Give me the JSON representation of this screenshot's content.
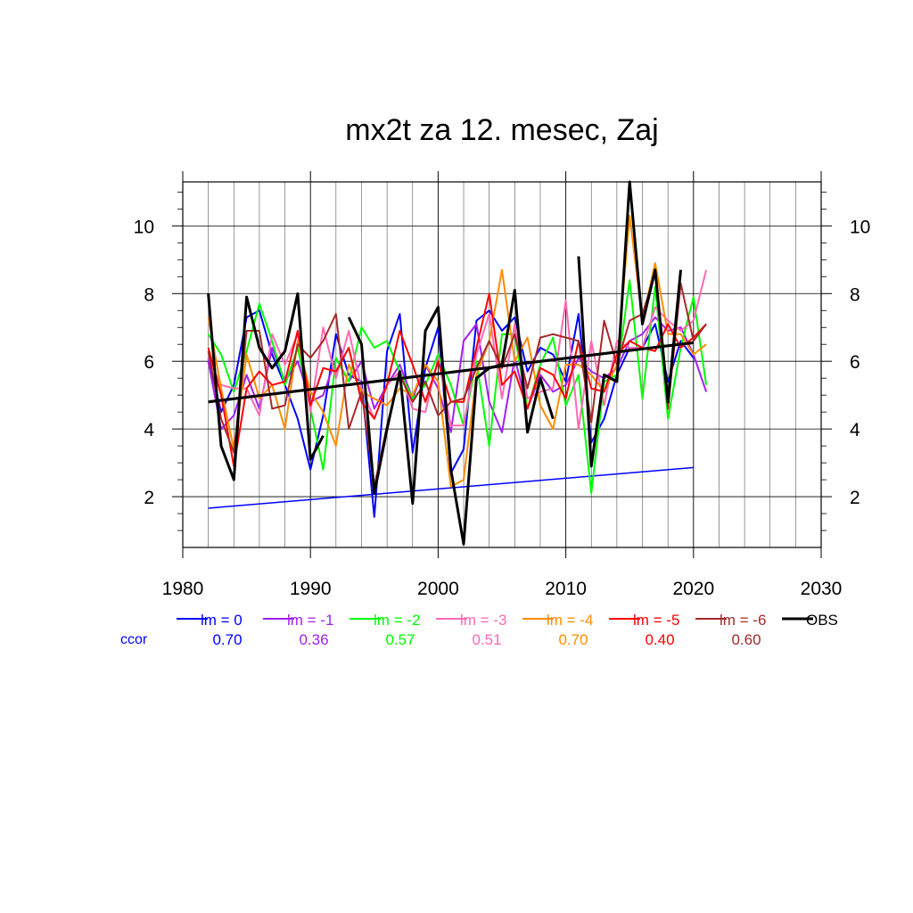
{
  "chart_data": {
    "type": "line",
    "title": "mx2t za 12. mesec, Zaj",
    "xlim": [
      1980,
      2030
    ],
    "ylim": [
      0.5,
      11.3
    ],
    "x_ticks": [
      1980,
      1990,
      2000,
      2010,
      2020,
      2030
    ],
    "y_ticks": [
      2,
      4,
      6,
      8,
      10
    ],
    "grid": true,
    "legend_position": "bottom",
    "ccor_label": "ccor",
    "series": [
      {
        "name": "lm = 0",
        "color": "#0000ff",
        "ccor": "0.70",
        "x": [
          1982,
          1983,
          1984,
          1985,
          1986,
          1987,
          1988,
          1989,
          1990,
          1991,
          1992,
          1993,
          1994,
          1995,
          1996,
          1997,
          1998,
          1999,
          2000,
          2001,
          2002,
          2003,
          2004,
          2005,
          2006,
          2007,
          2008,
          2009,
          2010,
          2011,
          2012,
          2013,
          2014,
          2015,
          2016,
          2017,
          2018,
          2019,
          2020
        ],
        "y": [
          6.1,
          4.5,
          5.3,
          7.3,
          7.5,
          6.2,
          5.3,
          4.3,
          2.8,
          4.4,
          6.8,
          5.6,
          5.4,
          1.4,
          6.3,
          7.4,
          3.3,
          5.8,
          7.0,
          2.7,
          3.4,
          7.2,
          7.5,
          6.9,
          7.3,
          5.7,
          6.4,
          6.2,
          5.4,
          7.4,
          3.6,
          4.3,
          5.6,
          6.4,
          6.4,
          7.1,
          5.4,
          6.6,
          6.1
        ]
      },
      {
        "name": "lm = -1",
        "color": "#a020f0",
        "ccor": "0.36",
        "x": [
          1982,
          1983,
          1984,
          1985,
          1986,
          1987,
          1988,
          1989,
          1990,
          1991,
          1992,
          1993,
          1994,
          1995,
          1996,
          1997,
          1998,
          1999,
          2000,
          2001,
          2002,
          2003,
          2004,
          2005,
          2006,
          2007,
          2008,
          2009,
          2010,
          2011,
          2012,
          2013,
          2014,
          2015,
          2016,
          2017,
          2018,
          2019,
          2020,
          2021
        ],
        "y": [
          6.0,
          4.0,
          4.4,
          5.6,
          4.6,
          6.4,
          5.4,
          6.0,
          4.8,
          5.0,
          6.1,
          5.4,
          6.0,
          4.6,
          5.3,
          5.9,
          4.9,
          5.9,
          5.2,
          3.9,
          6.6,
          7.1,
          4.8,
          3.9,
          6.1,
          4.6,
          5.6,
          5.1,
          5.3,
          6.1,
          5.7,
          5.5,
          5.8,
          6.6,
          6.8,
          7.3,
          6.9,
          7.0,
          6.2,
          5.1
        ]
      },
      {
        "name": "lm = -2",
        "color": "#00ff00",
        "ccor": "0.57",
        "x": [
          1982,
          1983,
          1984,
          1985,
          1986,
          1987,
          1988,
          1989,
          1990,
          1991,
          1992,
          1993,
          1994,
          1995,
          1996,
          1997,
          1998,
          1999,
          2000,
          2001,
          2002,
          2003,
          2004,
          2005,
          2006,
          2007,
          2008,
          2009,
          2010,
          2011,
          2012,
          2013,
          2014,
          2015,
          2016,
          2017,
          2018,
          2019,
          2020,
          2021
        ],
        "y": [
          6.8,
          6.2,
          5.1,
          6.3,
          7.7,
          6.6,
          5.3,
          6.4,
          4.6,
          2.8,
          6.1,
          5.4,
          7.0,
          6.4,
          6.6,
          5.7,
          4.9,
          5.3,
          6.2,
          5.3,
          4.1,
          6.0,
          3.5,
          6.8,
          6.8,
          4.6,
          5.9,
          6.7,
          4.7,
          5.6,
          2.1,
          5.4,
          5.6,
          8.4,
          4.9,
          8.2,
          4.3,
          6.4,
          7.9,
          5.3
        ]
      },
      {
        "name": "lm = -3",
        "color": "#ff69b4",
        "ccor": "0.51",
        "x": [
          1982,
          1983,
          1984,
          1985,
          1986,
          1987,
          1988,
          1989,
          1990,
          1991,
          1992,
          1993,
          1994,
          1995,
          1996,
          1997,
          1998,
          1999,
          2000,
          2001,
          2002,
          2003,
          2004,
          2005,
          2006,
          2007,
          2008,
          2009,
          2010,
          2011,
          2012,
          2013,
          2014,
          2015,
          2016,
          2017,
          2018,
          2019,
          2020,
          2021
        ],
        "y": [
          6.1,
          5.3,
          5.2,
          5.2,
          4.4,
          6.8,
          5.9,
          6.8,
          4.5,
          7.0,
          5.5,
          6.9,
          5.2,
          4.3,
          5.3,
          5.7,
          4.6,
          4.5,
          6.1,
          4.1,
          4.1,
          6.2,
          7.4,
          4.9,
          7.1,
          4.9,
          5.1,
          5.2,
          7.8,
          4.0,
          6.6,
          4.7,
          6.6,
          6.4,
          6.4,
          7.6,
          7.2,
          6.9,
          7.2,
          8.7
        ]
      },
      {
        "name": "lm = -4",
        "color": "#ff8c00",
        "ccor": "0.70",
        "x": [
          1982,
          1983,
          1984,
          1985,
          1986,
          1987,
          1988,
          1989,
          1990,
          1991,
          1992,
          1993,
          1994,
          1995,
          1996,
          1997,
          1998,
          1999,
          2000,
          2001,
          2002,
          2003,
          2004,
          2005,
          2006,
          2007,
          2008,
          2009,
          2010,
          2011,
          2012,
          2013,
          2014,
          2015,
          2016,
          2017,
          2018,
          2019,
          2020,
          2021
        ],
        "y": [
          7.3,
          5.2,
          3.4,
          6.2,
          4.9,
          5.3,
          4.0,
          6.6,
          5.1,
          4.5,
          3.5,
          5.9,
          5.1,
          4.9,
          4.7,
          5.2,
          5.0,
          5.9,
          5.4,
          2.3,
          2.5,
          5.6,
          6.6,
          8.7,
          6.0,
          6.7,
          4.7,
          4.0,
          5.9,
          5.9,
          5.6,
          5.1,
          5.9,
          10.3,
          7.2,
          8.9,
          6.8,
          6.8,
          6.2,
          6.5
        ]
      },
      {
        "name": "lm = -5",
        "color": "#ff0000",
        "ccor": "0.40",
        "x": [
          1982,
          1983,
          1984,
          1985,
          1986,
          1987,
          1988,
          1989,
          1990,
          1991,
          1992,
          1993,
          1994,
          1995,
          1996,
          1997,
          1998,
          1999,
          2000,
          2001,
          2002,
          2003,
          2004,
          2005,
          2006,
          2007,
          2008,
          2009,
          2010,
          2011,
          2012,
          2013,
          2014,
          2015,
          2016,
          2017,
          2018,
          2019,
          2020,
          2021
        ],
        "y": [
          6.4,
          5.0,
          2.9,
          5.2,
          5.7,
          5.3,
          5.4,
          6.9,
          4.7,
          5.8,
          5.7,
          6.4,
          4.8,
          4.3,
          5.3,
          6.9,
          5.9,
          4.8,
          6.0,
          4.8,
          4.8,
          6.4,
          8.0,
          5.3,
          5.7,
          4.6,
          5.8,
          5.6,
          4.9,
          6.6,
          5.2,
          5.1,
          6.2,
          6.6,
          6.4,
          6.3,
          7.1,
          6.4,
          6.7,
          7.1
        ]
      },
      {
        "name": "lm = -6",
        "color": "#a52a2a",
        "ccor": "0.60",
        "x": [
          1982,
          1983,
          1984,
          1985,
          1986,
          1987,
          1988,
          1989,
          1990,
          1991,
          1992,
          1993,
          1994,
          1995,
          1996,
          1997,
          1998,
          1999,
          2000,
          2001,
          2002,
          2003,
          2004,
          2005,
          2006,
          2007,
          2008,
          2009,
          2010,
          2011,
          2012,
          2013,
          2014,
          2015,
          2016,
          2017,
          2018,
          2019,
          2020,
          2021
        ],
        "y": [
          6.3,
          4.3,
          3.3,
          6.9,
          6.9,
          4.6,
          4.7,
          6.5,
          6.1,
          6.6,
          7.4,
          4.0,
          5.1,
          2.3,
          4.1,
          5.6,
          4.8,
          5.4,
          4.4,
          4.8,
          4.9,
          5.8,
          6.6,
          5.8,
          6.8,
          5.2,
          6.7,
          6.8,
          6.7,
          6.6,
          4.2,
          7.2,
          5.9,
          7.2,
          7.4,
          8.6,
          4.6,
          8.3,
          6.6,
          7.1
        ]
      },
      {
        "name": "OBS",
        "color": "#000000",
        "ccor": "",
        "segments": [
          {
            "x": [
              1982,
              1983,
              1984,
              1985,
              1986,
              1987,
              1988,
              1989,
              1990,
              1991
            ],
            "y": [
              8.0,
              3.5,
              2.5,
              7.9,
              6.4,
              5.8,
              6.3,
              8.0,
              3.1,
              3.8
            ]
          },
          {
            "x": [
              1993,
              1994,
              1995,
              1996,
              1997,
              1998,
              1999,
              2000,
              2001,
              2002,
              2003,
              2004,
              2005,
              2006,
              2007,
              2008,
              2009
            ],
            "y": [
              7.3,
              6.5,
              2.1,
              4.0,
              5.7,
              1.8,
              6.9,
              7.6,
              2.8,
              0.6,
              5.5,
              5.8,
              5.9,
              8.1,
              3.9,
              5.5,
              4.3
            ]
          },
          {
            "x": [
              2011,
              2012,
              2013,
              2014,
              2015,
              2016,
              2017,
              2018,
              2019
            ],
            "y": [
              9.1,
              2.9,
              5.6,
              5.4,
              11.3,
              7.1,
              8.7,
              4.8,
              8.7
            ]
          }
        ]
      }
    ],
    "trend_lines": [
      {
        "color": "#0000ff",
        "width": 1.5,
        "x": [
          1982,
          2020
        ],
        "y": [
          1.66,
          2.86
        ]
      },
      {
        "color": "#000000",
        "width": 3,
        "x": [
          1982,
          2020
        ],
        "y": [
          4.8,
          6.55
        ]
      }
    ]
  }
}
